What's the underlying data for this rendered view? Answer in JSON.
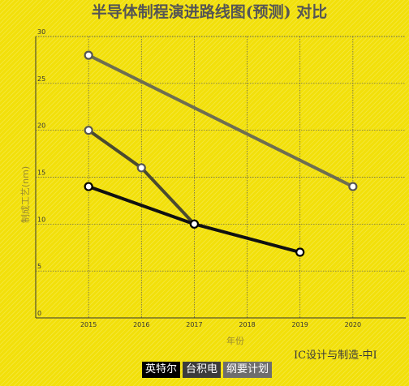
{
  "chart_data": {
    "type": "line",
    "title": "半导体制程演进路线图(预测) 对比",
    "xlabel": "年份",
    "ylabel": "制成工艺(nm)",
    "x": [
      2015,
      2016,
      2017,
      2018,
      2019,
      2020
    ],
    "xlim": [
      2014,
      2021
    ],
    "ylim": [
      0,
      30
    ],
    "yticks": [
      0,
      5,
      10,
      15,
      20,
      25,
      30
    ],
    "grid": true,
    "legend_position": "bottom",
    "series": [
      {
        "name": "英特尔",
        "color": "#111111",
        "points": [
          [
            2015,
            14
          ],
          [
            2017,
            10
          ],
          [
            2019,
            7
          ]
        ]
      },
      {
        "name": "台积电",
        "color": "#4a4a30",
        "points": [
          [
            2015,
            20
          ],
          [
            2016,
            16
          ],
          [
            2017,
            10
          ]
        ]
      },
      {
        "name": "纲要计划",
        "color": "#6e6e50",
        "points": [
          [
            2015,
            28
          ],
          [
            2020,
            14
          ]
        ]
      }
    ]
  },
  "legend_colors": [
    "#000000",
    "#3c3c3c",
    "#6e6e6e"
  ],
  "watermark": "IC设计与制造-中I"
}
